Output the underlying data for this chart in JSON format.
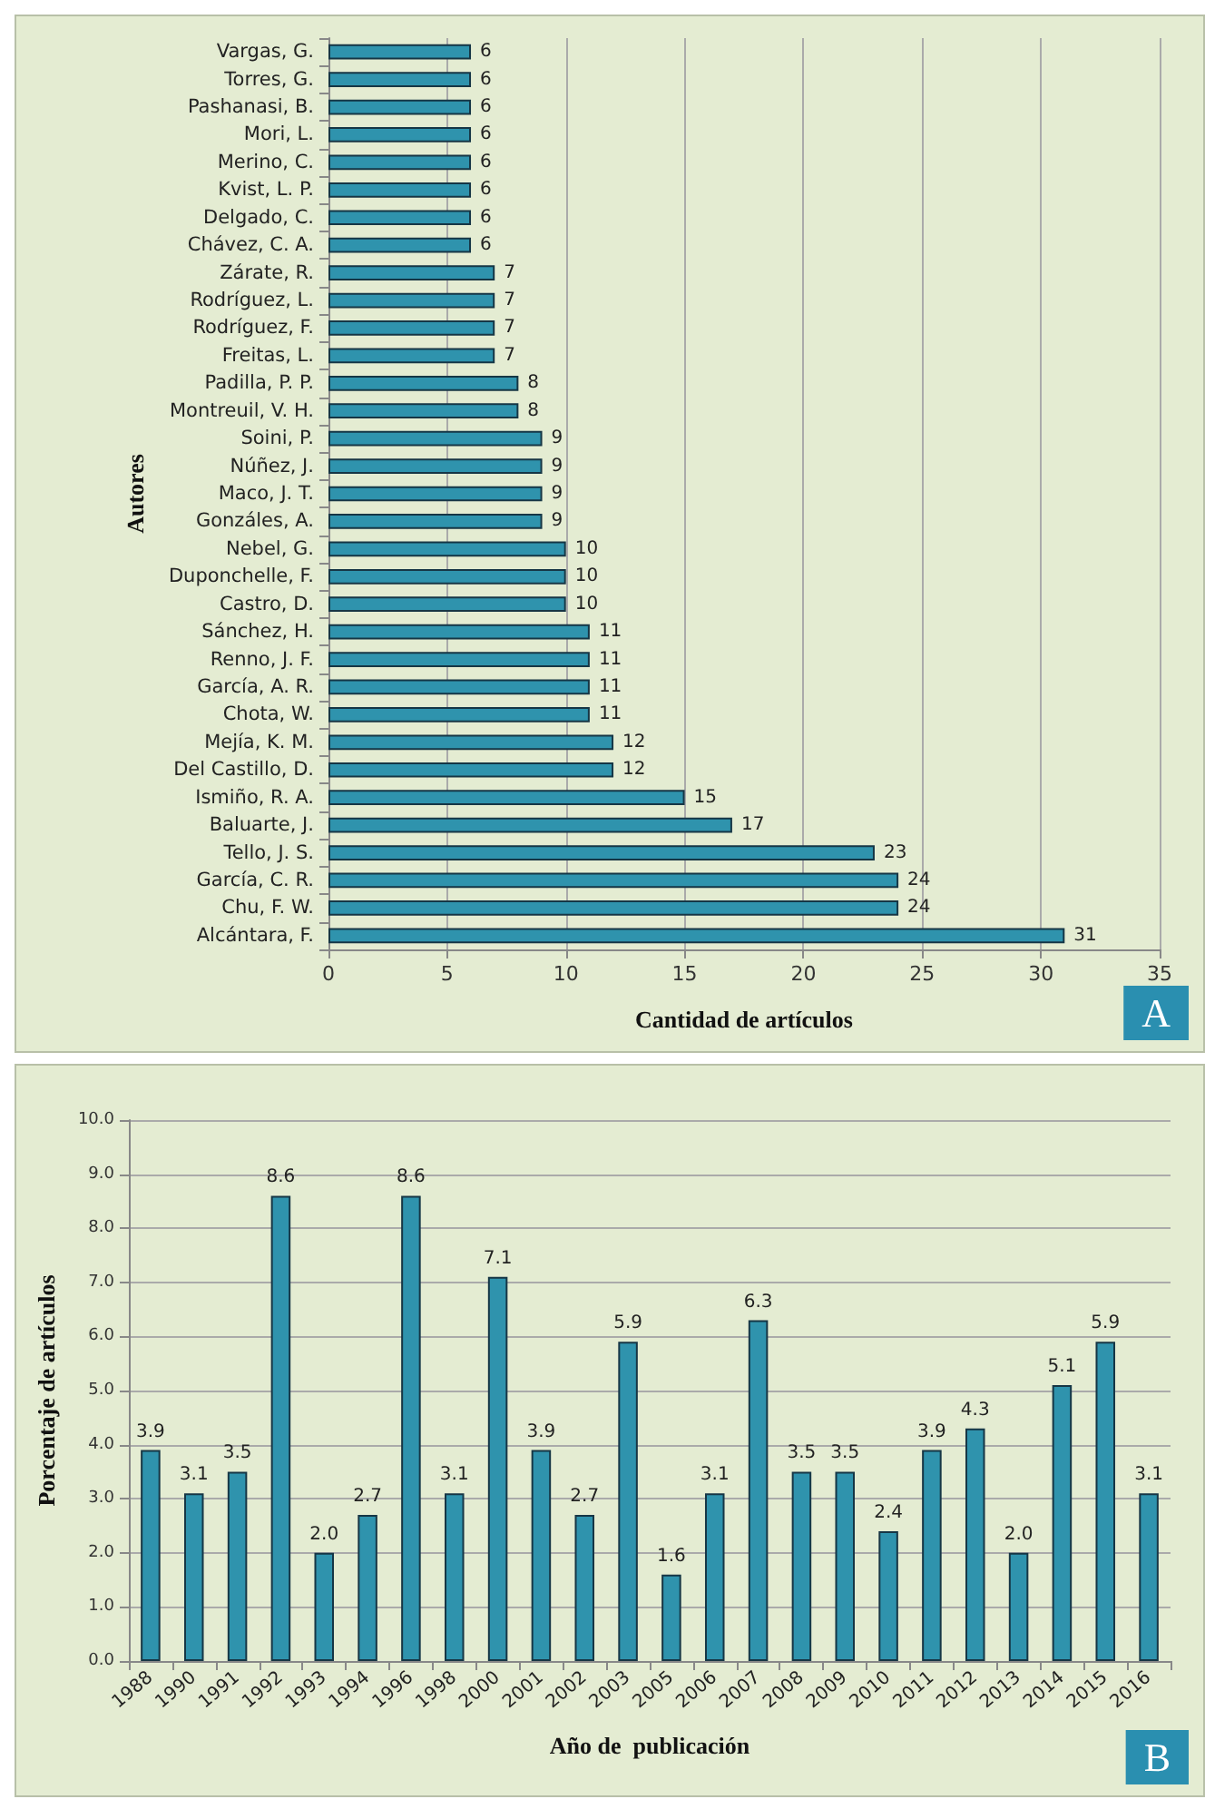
{
  "chart_data": [
    {
      "type": "bar",
      "orientation": "horizontal",
      "xlabel": "Cantidad de artículos",
      "ylabel": "Autores",
      "color": "#2f93ad",
      "categories": [
        "Vargas, G.",
        "Torres, G.",
        "Pashanasi, B.",
        "Mori, L.",
        "Merino, C.",
        "Kvist, L. P.",
        "Delgado, C.",
        "Chávez, C. A.",
        "Zárate, R.",
        "Rodríguez, L.",
        "Rodríguez, F.",
        "Freitas, L.",
        "Padilla, P. P.",
        "Montreuil, V. H.",
        "Soini, P.",
        "Núñez, J.",
        "Maco, J. T.",
        "Gonzáles, A.",
        "Nebel, G.",
        "Duponchelle, F.",
        "Castro, D.",
        "Sánchez, H.",
        "Renno, J. F.",
        "García, A. R.",
        "Chota, W.",
        "Mejía, K. M.",
        "Del Castillo, D.",
        "Ismiño, R. A.",
        "Baluarte, J.",
        "Tello, J. S.",
        "García, C. R.",
        "Chu, F. W.",
        "Alcántara, F."
      ],
      "values": [
        6,
        6,
        6,
        6,
        6,
        6,
        6,
        6,
        7,
        7,
        7,
        7,
        8,
        8,
        9,
        9,
        9,
        9,
        10,
        10,
        10,
        11,
        11,
        11,
        11,
        12,
        12,
        15,
        17,
        23,
        24,
        24,
        31
      ],
      "xlim": [
        0,
        35
      ],
      "xticks": [
        0,
        5,
        10,
        15,
        20,
        25,
        30,
        35
      ],
      "grid": "x",
      "data_labels": true,
      "annotations": [
        "A"
      ]
    },
    {
      "type": "bar",
      "xlabel": "Año de  publicación",
      "ylabel": "Porcentaje de artículos",
      "color": "#2f93ad",
      "categories": [
        "1988",
        "1990",
        "1991",
        "1992",
        "1993",
        "1994",
        "1996",
        "1998",
        "2000",
        "2001",
        "2002",
        "2003",
        "2005",
        "2006",
        "2007",
        "2008",
        "2009",
        "2010",
        "2011",
        "2012",
        "2013",
        "2014",
        "2015",
        "2016"
      ],
      "values": [
        3.9,
        3.1,
        3.5,
        8.6,
        2.0,
        2.7,
        8.6,
        3.1,
        7.1,
        3.9,
        2.7,
        5.9,
        1.6,
        3.1,
        6.3,
        3.5,
        3.5,
        2.4,
        3.9,
        4.3,
        2.0,
        5.1,
        5.9,
        3.1
      ],
      "value_labels": [
        "3.9",
        "3.1",
        "3.5",
        "8.6",
        "2.0",
        "2.7",
        "8.6",
        "3.1",
        "7.1",
        "3.9",
        "2.7",
        "5.9",
        "1.6",
        "3.1",
        "6.3",
        "3.5",
        "3.5",
        "2.4",
        "3.9",
        "4.3",
        "2.0",
        "5.1",
        "5.9",
        "3.1"
      ],
      "ylim": [
        0,
        10
      ],
      "yticks": [
        {
          "value": 0,
          "label": "0.0"
        },
        {
          "value": 1,
          "label": "1.0"
        },
        {
          "value": 2,
          "label": "2.0"
        },
        {
          "value": 3,
          "label": "3.0"
        },
        {
          "value": 4,
          "label": "4.0"
        },
        {
          "value": 5,
          "label": "5.0"
        },
        {
          "value": 6,
          "label": "6.0"
        },
        {
          "value": 7,
          "label": "7.0"
        },
        {
          "value": 8,
          "label": "8.0"
        },
        {
          "value": 9,
          "label": "9.0"
        },
        {
          "value": 10,
          "label": "10.0"
        }
      ],
      "grid": "y",
      "annotations": [
        "B"
      ]
    }
  ]
}
